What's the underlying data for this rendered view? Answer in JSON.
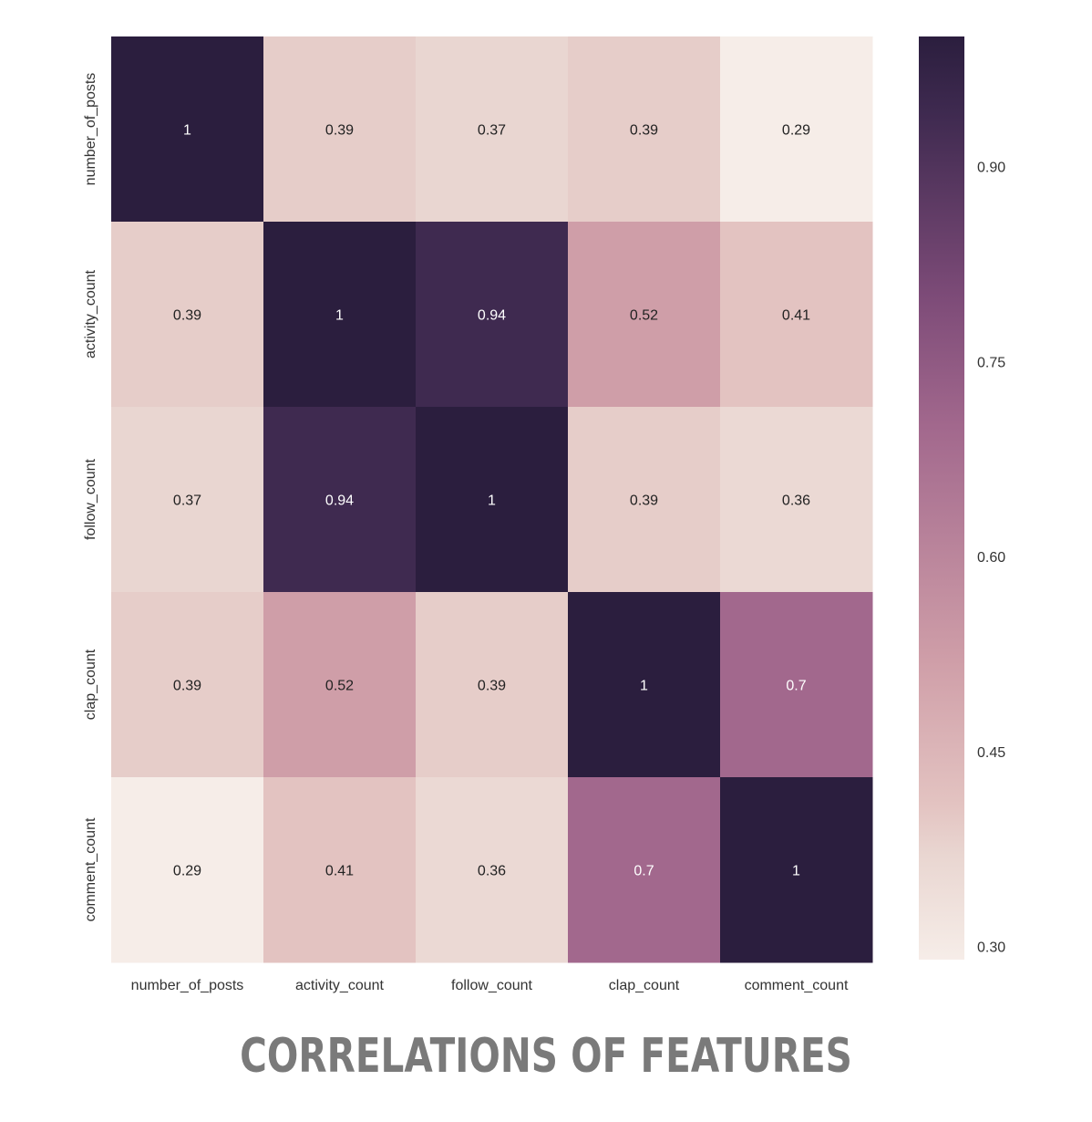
{
  "chart_data": {
    "type": "heatmap",
    "title": "CORRELATIONS OF FEATURES",
    "x_categories": [
      "number_of_posts",
      "activity_count",
      "follow_count",
      "clap_count",
      "comment_count"
    ],
    "y_categories": [
      "number_of_posts",
      "activity_count",
      "follow_count",
      "clap_count",
      "comment_count"
    ],
    "values": [
      [
        1,
        0.39,
        0.37,
        0.39,
        0.29
      ],
      [
        0.39,
        1,
        0.94,
        0.52,
        0.41
      ],
      [
        0.37,
        0.94,
        1,
        0.39,
        0.36
      ],
      [
        0.39,
        0.52,
        0.39,
        1,
        0.7
      ],
      [
        0.29,
        0.41,
        0.36,
        0.7,
        1
      ]
    ],
    "value_labels": [
      [
        "1",
        "0.39",
        "0.37",
        "0.39",
        "0.29"
      ],
      [
        "0.39",
        "1",
        "0.94",
        "0.52",
        "0.41"
      ],
      [
        "0.37",
        "0.94",
        "1",
        "0.39",
        "0.36"
      ],
      [
        "0.39",
        "0.52",
        "0.39",
        "1",
        "0.7"
      ],
      [
        "0.29",
        "0.41",
        "0.36",
        "0.7",
        "1"
      ]
    ],
    "colorbar": {
      "range": [
        0.29,
        1.0
      ],
      "ticks": [
        0.3,
        0.45,
        0.6,
        0.75,
        0.9
      ],
      "tick_labels": [
        "0.30",
        "0.45",
        "0.60",
        "0.75",
        "0.90"
      ]
    },
    "colormap": {
      "stops": [
        [
          0.29,
          "#f6ede8"
        ],
        [
          0.37,
          "#e9d6d1"
        ],
        [
          0.41,
          "#e3c3c1"
        ],
        [
          0.52,
          "#cf9ea8"
        ],
        [
          0.7,
          "#a2688d"
        ],
        [
          0.8,
          "#7d4b78"
        ],
        [
          0.94,
          "#3f2a50"
        ],
        [
          1.0,
          "#2b1e3e"
        ]
      ],
      "light_text_color": "#ffffff",
      "dark_text_color": "#222222",
      "light_text_threshold": 0.6
    },
    "grid": false,
    "legend": "colorbar-right"
  }
}
